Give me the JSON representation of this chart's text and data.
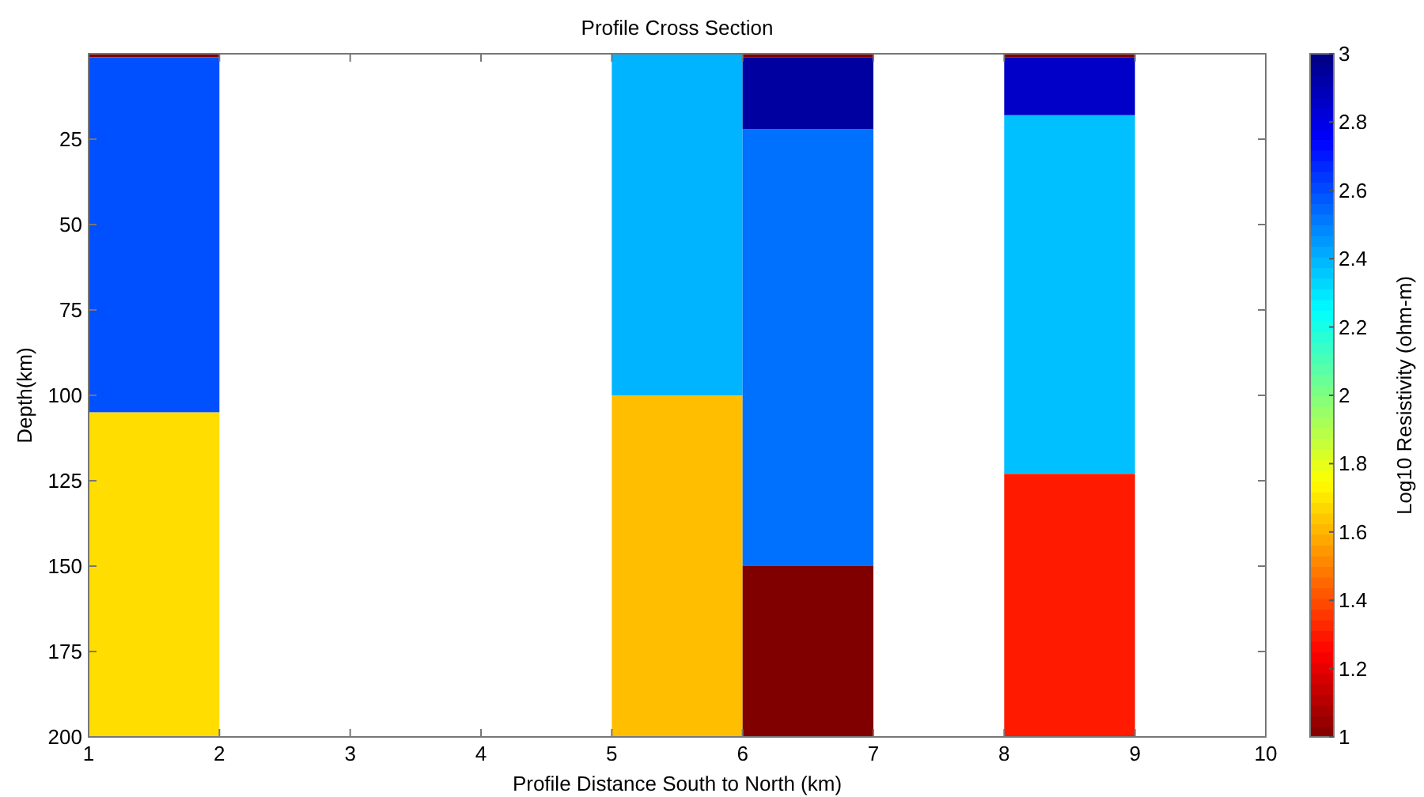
{
  "chart_data": {
    "type": "bar",
    "stacked": true,
    "title": "Profile Cross Section",
    "xlabel": "Profile Distance South to North (km)",
    "ylabel": "Depth(km)",
    "clabel": "Log10 Resistivity (ohm-m)",
    "x": [
      1.5,
      5.5,
      6.5,
      8.5
    ],
    "series": [
      {
        "colors": [
          "#800000",
          null,
          "#800000",
          "#800000"
        ],
        "values": [
          1,
          null,
          1,
          1
        ]
      },
      {
        "colors": [
          "#0050ff",
          "#00b4ff",
          "#0000a0",
          "#0000c8"
        ],
        "values": [
          104,
          100,
          21,
          17
        ]
      },
      {
        "colors": [
          "#ffdd00",
          "#ffbf00",
          "#0070ff",
          "#00c0ff"
        ],
        "values": [
          95,
          100,
          128,
          105
        ]
      },
      {
        "colors": [
          null,
          null,
          "#800000",
          "#ff1a00"
        ],
        "values": [
          null,
          null,
          50,
          77
        ]
      }
    ],
    "xlim": [
      1,
      10
    ],
    "xticks": [
      1,
      2,
      3,
      4,
      5,
      6,
      7,
      8,
      9,
      10
    ],
    "ylim": [
      200,
      0
    ],
    "yticks": [
      25,
      50,
      75,
      100,
      125,
      150,
      175,
      200
    ],
    "clim": [
      1,
      3
    ],
    "cticks": [
      1,
      1.2,
      1.4,
      1.6,
      1.8,
      2,
      2.2,
      2.4,
      2.6,
      2.8,
      3
    ],
    "grid": false
  }
}
